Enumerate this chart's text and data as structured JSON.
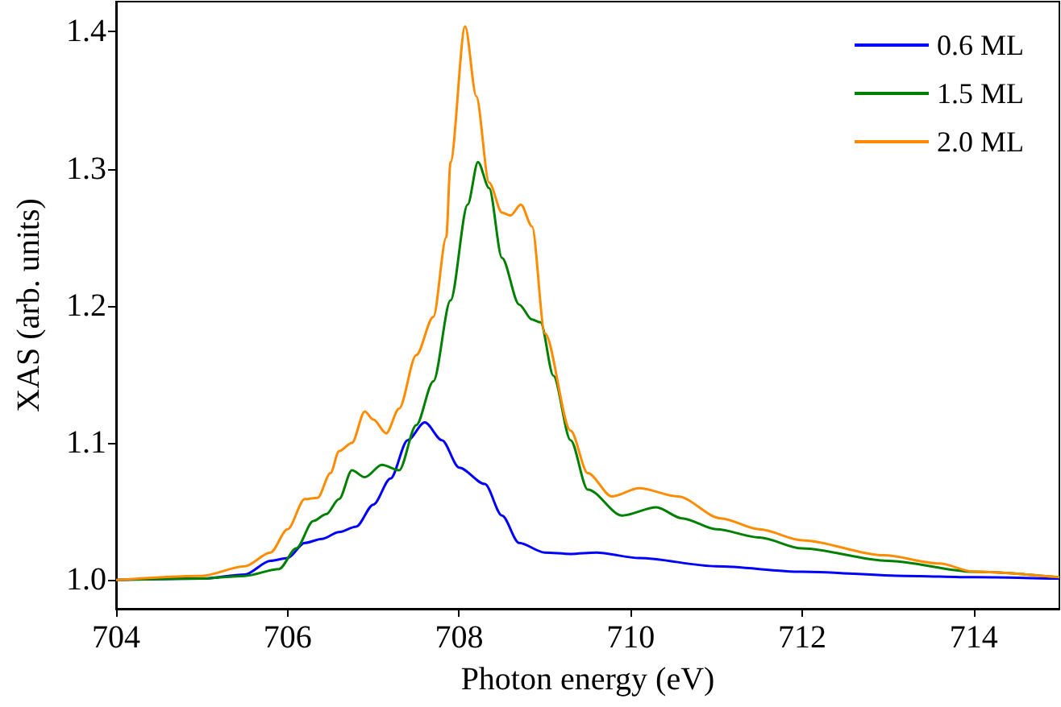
{
  "chart_data": {
    "type": "line",
    "xlabel": "Photon energy (eV)",
    "ylabel": "XAS (arb. units)",
    "xlim": [
      704,
      715
    ],
    "xticks": [
      704,
      706,
      708,
      710,
      712,
      714
    ],
    "ylim": [
      0.979,
      1.422
    ],
    "yticks": [
      {
        "value": 1.0,
        "label": "1.0"
      },
      {
        "value": 1.1,
        "label": "1.1"
      },
      {
        "value": 1.2,
        "label": "1.2"
      },
      {
        "value": 1.3,
        "label": "1.3"
      },
      {
        "value": 1.4,
        "label": "1.4"
      }
    ],
    "legend": "top right",
    "grid": false,
    "marker": "none",
    "line_style": "solid",
    "series": [
      {
        "name": "0.6 ML",
        "color": "#0000ff",
        "x": [
          704,
          705,
          705.5,
          705.8,
          706,
          706.2,
          706.4,
          706.6,
          706.8,
          707,
          707.2,
          707.4,
          707.6,
          707.8,
          708,
          708.3,
          708.5,
          708.7,
          709,
          709.3,
          709.6,
          710.1,
          711,
          712,
          713.2,
          714,
          715
        ],
        "values": [
          1.0,
          1.001,
          1.004,
          1.014,
          1.016,
          1.027,
          1.03,
          1.035,
          1.039,
          1.055,
          1.074,
          1.102,
          1.115,
          1.102,
          1.082,
          1.07,
          1.047,
          1.027,
          1.02,
          1.019,
          1.02,
          1.016,
          1.01,
          1.006,
          1.003,
          1.002,
          1.001
        ]
      },
      {
        "name": "1.5 ML",
        "color": "#008000",
        "x": [
          704,
          705,
          705.5,
          705.9,
          706.1,
          706.3,
          706.45,
          706.6,
          706.75,
          706.9,
          707.1,
          707.3,
          707.5,
          707.7,
          707.9,
          708.1,
          708.22,
          708.35,
          708.5,
          708.7,
          708.85,
          708.95,
          709.1,
          709.3,
          709.5,
          709.9,
          710.3,
          710.6,
          711,
          711.5,
          712,
          713,
          714,
          715
        ],
        "values": [
          1.0,
          1.001,
          1.003,
          1.008,
          1.023,
          1.043,
          1.048,
          1.059,
          1.08,
          1.075,
          1.084,
          1.08,
          1.113,
          1.145,
          1.204,
          1.274,
          1.305,
          1.286,
          1.235,
          1.201,
          1.19,
          1.188,
          1.149,
          1.102,
          1.066,
          1.047,
          1.053,
          1.045,
          1.037,
          1.031,
          1.023,
          1.014,
          1.006,
          1.002
        ]
      },
      {
        "name": "2.0 ML",
        "color": "#ff8c00",
        "x": [
          704,
          705,
          705.5,
          705.8,
          706,
          706.2,
          706.35,
          706.5,
          706.6,
          706.75,
          706.9,
          707,
          707.15,
          707.3,
          707.5,
          707.7,
          707.85,
          707.9,
          708.07,
          708.2,
          708.35,
          708.5,
          708.6,
          708.72,
          708.85,
          709,
          709.3,
          709.5,
          709.78,
          710.1,
          710.55,
          711.05,
          711.5,
          712,
          712.95,
          713.6,
          714,
          715
        ],
        "values": [
          1.0,
          1.003,
          1.01,
          1.02,
          1.037,
          1.059,
          1.06,
          1.078,
          1.094,
          1.1,
          1.123,
          1.117,
          1.107,
          1.125,
          1.164,
          1.192,
          1.25,
          1.305,
          1.404,
          1.353,
          1.29,
          1.268,
          1.266,
          1.274,
          1.258,
          1.18,
          1.109,
          1.078,
          1.061,
          1.067,
          1.061,
          1.045,
          1.037,
          1.029,
          1.018,
          1.012,
          1.006,
          1.002
        ]
      }
    ]
  }
}
